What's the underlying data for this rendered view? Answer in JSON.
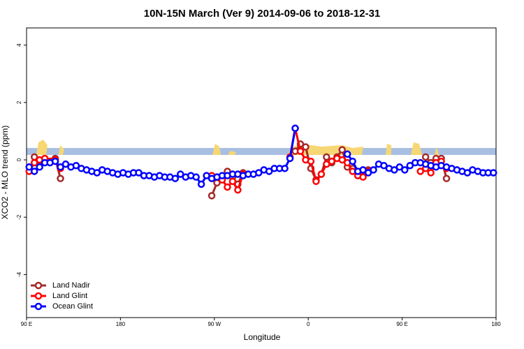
{
  "chart_data": {
    "type": "line",
    "title": "10N-15N March (Ver 9)   2014-09-06 to 2018-12-31",
    "x_label": "Longitude",
    "y_label": "XCO2 - MLO trend (ppm)",
    "xlim": [
      90,
      540
    ],
    "xticks": [
      {
        "value": 90,
        "label": "90 E"
      },
      180,
      {
        "value": 270,
        "label": "90 W"
      },
      {
        "value": 360,
        "label": "0"
      },
      {
        "value": 450,
        "label": "90 E"
      },
      {
        "value": 540,
        "label": "180"
      }
    ],
    "ylim": [
      -5.5,
      4.6
    ],
    "yticks": [
      -4,
      -2,
      0,
      2,
      4
    ],
    "grid": false,
    "legend": "bottomleft",
    "x": [
      92.5,
      97.5,
      102.5,
      107.5,
      112.5,
      117.5,
      122.5,
      127.5,
      132.5,
      137.5,
      142.5,
      147.5,
      152.5,
      157.5,
      162.5,
      167.5,
      172.5,
      177.5,
      182.5,
      187.5,
      192.5,
      197.5,
      202.5,
      207.5,
      212.5,
      217.5,
      222.5,
      227.5,
      232.5,
      237.5,
      242.5,
      247.5,
      252.5,
      257.5,
      262.5,
      267.5,
      272.5,
      277.5,
      282.5,
      287.5,
      292.5,
      297.5,
      302.5,
      307.5,
      312.5,
      317.5,
      322.5,
      327.5,
      332.5,
      337.5,
      342.5,
      347.5,
      352.5,
      357.5,
      362.5,
      367.5,
      372.5,
      377.5,
      382.5,
      387.5,
      392.5,
      397.5,
      402.5,
      407.5,
      412.5,
      417.5,
      422.5,
      427.5,
      432.5,
      437.5,
      442.5,
      447.5,
      452.5,
      457.5,
      462.5,
      467.5,
      472.5,
      477.5,
      482.5,
      487.5,
      492.5,
      497.5,
      502.5,
      507.5,
      512.5,
      517.5,
      522.5,
      527.5,
      532.5,
      537.5
    ],
    "series": [
      {
        "name": "Land Nadir",
        "color": "#a52a2a",
        "values": [
          null,
          0.1,
          -0.05,
          0.0,
          -0.05,
          0.05,
          -0.65,
          null,
          null,
          null,
          null,
          null,
          null,
          null,
          null,
          null,
          null,
          null,
          null,
          null,
          null,
          null,
          null,
          null,
          null,
          null,
          null,
          null,
          null,
          null,
          null,
          null,
          null,
          null,
          null,
          -1.25,
          -0.8,
          -0.65,
          -0.4,
          -0.6,
          -0.85,
          -0.45,
          null,
          null,
          null,
          null,
          null,
          null,
          null,
          null,
          null,
          0.3,
          0.55,
          0.45,
          -0.3,
          -0.7,
          -0.5,
          0.1,
          -0.1,
          0.1,
          0.35,
          -0.25,
          -0.3,
          -0.45,
          -0.55,
          -0.35,
          null,
          null,
          null,
          null,
          null,
          null,
          null,
          null,
          null,
          null,
          0.1,
          -0.1,
          0.05,
          0.05,
          -0.65,
          null,
          null,
          null,
          null,
          null,
          null,
          null,
          null,
          null
        ]
      },
      {
        "name": "Land Glint",
        "color": "#ff0000",
        "values": [
          -0.4,
          -0.1,
          0.0,
          0.05,
          -0.05,
          0.0,
          -0.3,
          null,
          null,
          null,
          null,
          null,
          null,
          null,
          null,
          null,
          null,
          null,
          null,
          null,
          null,
          null,
          null,
          null,
          null,
          null,
          null,
          null,
          null,
          null,
          null,
          null,
          null,
          null,
          null,
          -0.55,
          -0.6,
          -0.7,
          -0.95,
          -0.75,
          -1.05,
          -0.5,
          null,
          null,
          null,
          null,
          null,
          null,
          null,
          null,
          0.1,
          1.1,
          0.3,
          0.0,
          -0.05,
          -0.75,
          -0.5,
          -0.15,
          -0.05,
          0.05,
          0.0,
          -0.1,
          -0.4,
          -0.55,
          -0.6,
          -0.4,
          null,
          null,
          null,
          null,
          null,
          null,
          null,
          null,
          null,
          -0.4,
          -0.3,
          -0.45,
          -0.1,
          -0.05,
          -0.3,
          null,
          null,
          null,
          null,
          null,
          null,
          null,
          null,
          null
        ]
      },
      {
        "name": "Ocean Glint",
        "color": "#0000ff",
        "values": [
          -0.25,
          -0.4,
          -0.25,
          -0.1,
          -0.1,
          -0.05,
          -0.25,
          -0.15,
          -0.25,
          -0.2,
          -0.3,
          -0.35,
          -0.4,
          -0.45,
          -0.35,
          -0.4,
          -0.45,
          -0.5,
          -0.45,
          -0.5,
          -0.45,
          -0.45,
          -0.55,
          -0.55,
          -0.6,
          -0.55,
          -0.6,
          -0.6,
          -0.65,
          -0.5,
          -0.6,
          -0.55,
          -0.6,
          -0.85,
          -0.55,
          -0.65,
          -0.6,
          -0.55,
          -0.55,
          -0.5,
          -0.5,
          -0.55,
          -0.5,
          -0.5,
          -0.45,
          -0.35,
          -0.4,
          -0.3,
          -0.3,
          -0.3,
          0.05,
          1.1,
          null,
          null,
          null,
          null,
          null,
          null,
          null,
          null,
          null,
          0.2,
          -0.05,
          -0.4,
          -0.35,
          -0.45,
          -0.35,
          -0.15,
          -0.2,
          -0.3,
          -0.35,
          -0.25,
          -0.35,
          -0.2,
          -0.1,
          -0.1,
          -0.15,
          -0.2,
          -0.25,
          -0.2,
          -0.25,
          -0.3,
          -0.35,
          -0.4,
          -0.45,
          -0.35,
          -0.4,
          -0.45,
          -0.45,
          -0.45
        ]
      }
    ]
  }
}
